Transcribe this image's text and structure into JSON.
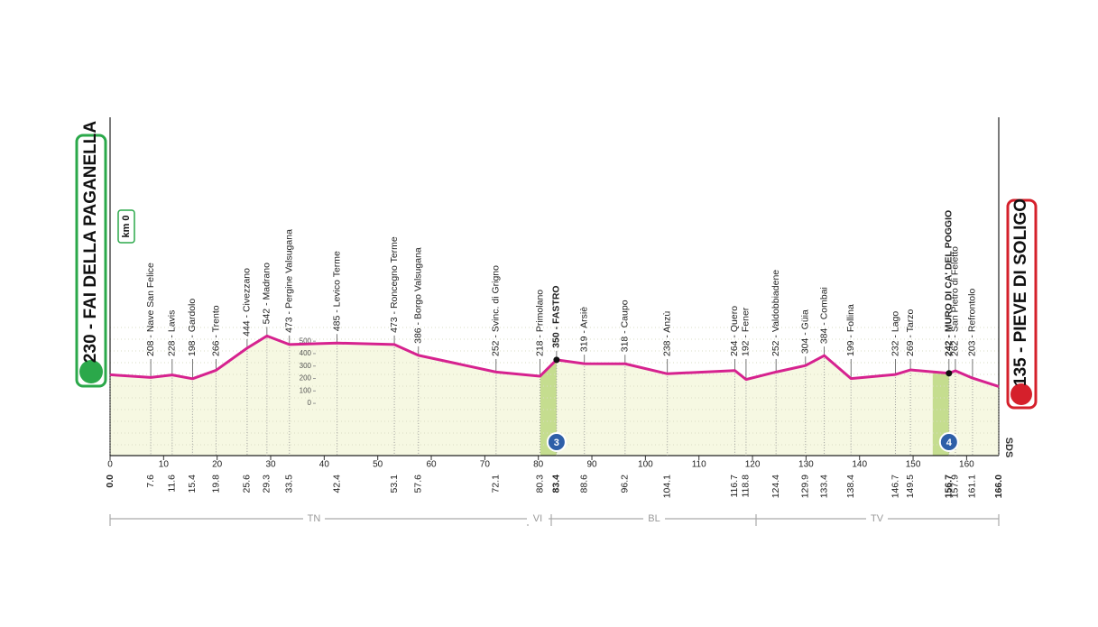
{
  "chart_data": {
    "type": "area",
    "start_label": "230 - FAI DELLA PAGANELLA",
    "finish_label": "135 - PIEVE DI SOLIGO",
    "km0_label": "km 0",
    "x": [
      0,
      7.6,
      11.6,
      15.4,
      19.8,
      25.6,
      29.3,
      33.5,
      42.4,
      53.1,
      57.6,
      72.1,
      80.3,
      83.4,
      88.6,
      96.2,
      104.1,
      116.7,
      118.8,
      124.4,
      129.9,
      133.4,
      138.4,
      146.7,
      149.5,
      156.7,
      157.9,
      161.1,
      166
    ],
    "x_labels": [
      "0.0",
      "7.6",
      "11.6",
      "15.4",
      "19.8",
      "25.6",
      "29.3",
      "33.5",
      "42.4",
      "53.1",
      "57.6",
      "72.1",
      "80.3",
      "83.4",
      "88.6",
      "96.2",
      "104.1",
      "116.7",
      "118.8",
      "124.4",
      "129.9",
      "133.4",
      "138.4",
      "146.7",
      "149.5",
      "156.7",
      "157.9",
      "161.1",
      "166.0"
    ],
    "values": [
      230,
      208,
      228,
      198,
      266,
      444,
      542,
      473,
      485,
      473,
      386,
      252,
      218,
      350,
      319,
      318,
      238,
      264,
      192,
      252,
      304,
      384,
      199,
      232,
      269,
      242,
      262,
      203,
      135
    ],
    "point_labels": [
      null,
      "208 - Nave San Felice",
      "228 - Lavis",
      "198 - Gardolo",
      "266 - Trento",
      "444 - Civezzano",
      "542 - Madrano",
      "473 - Pergine Valsugana",
      "485 - Levico Terme",
      "473 - Roncegno Terme",
      "386 - Borgo Valsugana",
      "252 - Svinc. di Grigno",
      "218 - Primolano",
      "350 - FASTRO",
      "319 - Arsiè",
      "318 - Caupo",
      "238 - Anzù",
      "264 - Quero",
      "192 - Fener",
      "252 - Valdobbiadene",
      "304 - Güia",
      "384 - Combai",
      "199 - Follina",
      "232 - Lago",
      "269 - Tarzo",
      "242 - MURO DI CA' DEL POGGIO",
      "262 - San Pietro di Feletto",
      "203 - Refrontolo",
      null
    ],
    "climb_category": [
      null,
      null,
      null,
      null,
      null,
      null,
      null,
      null,
      null,
      null,
      null,
      null,
      null,
      "3",
      null,
      null,
      null,
      null,
      null,
      null,
      null,
      null,
      null,
      null,
      null,
      "4",
      null,
      null,
      null
    ],
    "xlim": [
      0,
      166
    ],
    "xticks": [
      0,
      10,
      20,
      30,
      40,
      50,
      60,
      70,
      80,
      90,
      100,
      110,
      120,
      130,
      140,
      150,
      160
    ],
    "ylim": [
      -420,
      2300
    ],
    "yticks": [
      0,
      100,
      200,
      300,
      400,
      500
    ],
    "regions": [
      "TN",
      "VI",
      "BL",
      "TV"
    ],
    "end_note": "SDS",
    "color": "#d6228f"
  }
}
